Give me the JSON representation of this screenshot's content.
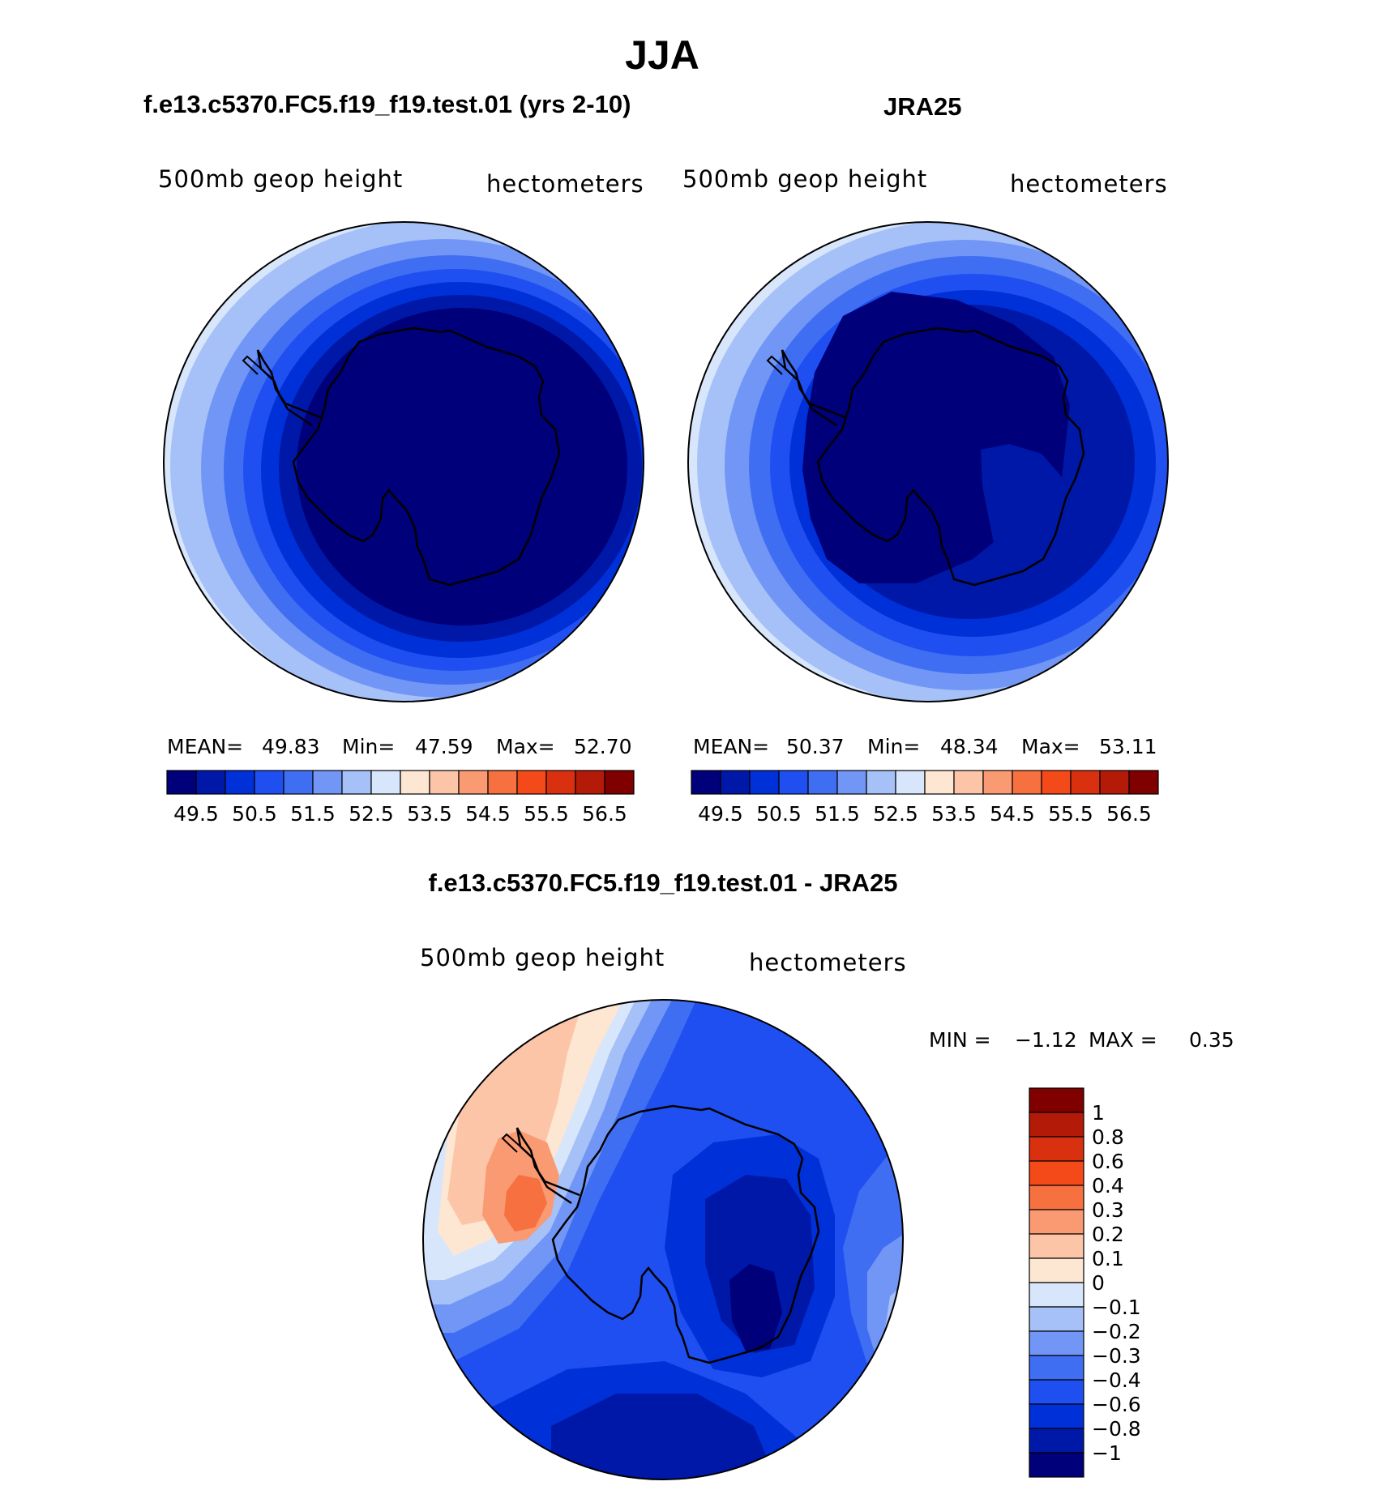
{
  "figure": {
    "title": "JJA"
  },
  "panels": {
    "model": {
      "title": "f.e13.c5370.FC5.f19_f19.test.01 (yrs 2-10)",
      "variable": "500mb  geop  height",
      "units": "hectometers",
      "stats": {
        "mean_label": "MEAN=",
        "mean": "49.83",
        "min_label": "Min=",
        "min": "47.59",
        "max_label": "Max=",
        "max": "52.70"
      }
    },
    "obs": {
      "title": "JRA25",
      "variable": "500mb  geop  height",
      "units": "hectometers",
      "stats": {
        "mean_label": "MEAN=",
        "mean": "50.37",
        "min_label": "Min=",
        "min": "48.34",
        "max_label": "Max=",
        "max": "53.11"
      }
    },
    "diff": {
      "title": "f.e13.c5370.FC5.f19_f19.test.01 - JRA25",
      "variable": "500mb  geop  height",
      "units": "hectometers",
      "stats": {
        "min_label": "MIN =",
        "min": "−1.12",
        "max_label": "MAX =",
        "max": "0.35"
      }
    }
  },
  "chart_data": [
    {
      "type": "heatmap",
      "projection": "south polar stereographic",
      "title": "f.e13.c5370.FC5.f19_f19.test.01 (yrs 2-10)",
      "variable": "500mb  geop  height",
      "units": "hectometers",
      "mean": 49.83,
      "min": 47.59,
      "max": 52.7,
      "colorbar_ticks": [
        "49.5",
        "50.5",
        "51.5",
        "52.5",
        "53.5",
        "54.5",
        "55.5",
        "56.5"
      ],
      "colorbar_colors": [
        "#00007a",
        "#0018a8",
        "#0030d8",
        "#1f4ff0",
        "#3f6ef2",
        "#7196f6",
        "#a6c0f8",
        "#d8e6fb",
        "#fde6d2",
        "#fcc5a8",
        "#f99a72",
        "#f7703f",
        "#f44a1a",
        "#d93010",
        "#b41a08",
        "#800000"
      ]
    },
    {
      "type": "heatmap",
      "projection": "south polar stereographic",
      "title": "JRA25",
      "variable": "500mb  geop  height",
      "units": "hectometers",
      "mean": 50.37,
      "min": 48.34,
      "max": 53.11,
      "colorbar_ticks": [
        "49.5",
        "50.5",
        "51.5",
        "52.5",
        "53.5",
        "54.5",
        "55.5",
        "56.5"
      ],
      "colorbar_colors": [
        "#00007a",
        "#0018a8",
        "#0030d8",
        "#1f4ff0",
        "#3f6ef2",
        "#7196f6",
        "#a6c0f8",
        "#d8e6fb",
        "#fde6d2",
        "#fcc5a8",
        "#f99a72",
        "#f7703f",
        "#f44a1a",
        "#d93010",
        "#b41a08",
        "#800000"
      ]
    },
    {
      "type": "heatmap",
      "projection": "south polar stereographic",
      "title": "f.e13.c5370.FC5.f19_f19.test.01 - JRA25",
      "variable": "500mb  geop  height",
      "units": "hectometers",
      "min": -1.12,
      "max": 0.35,
      "colorbar_ticks": [
        "1",
        "0.8",
        "0.6",
        "0.4",
        "0.3",
        "0.2",
        "0.1",
        "0",
        "−0.1",
        "−0.2",
        "−0.3",
        "−0.4",
        "−0.6",
        "−0.8",
        "−1"
      ],
      "colorbar_colors": [
        "#800000",
        "#b41a08",
        "#d93010",
        "#f44a1a",
        "#f7703f",
        "#f99a72",
        "#fcc5a8",
        "#fde6d2",
        "#d8e6fb",
        "#a6c0f8",
        "#7196f6",
        "#3f6ef2",
        "#1f4ff0",
        "#0030d8",
        "#0018a8",
        "#00007a"
      ]
    }
  ]
}
